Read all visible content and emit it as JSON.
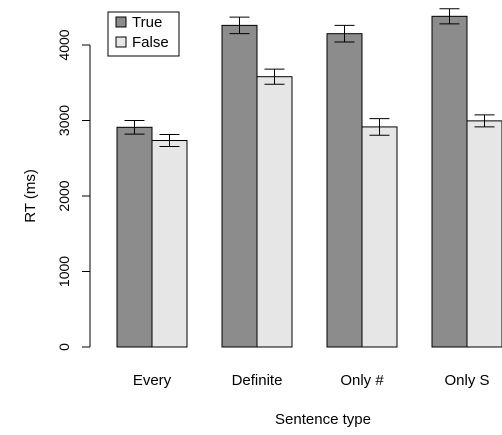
{
  "chart_data": {
    "type": "bar",
    "categories": [
      "Every",
      "Definite",
      "Only #",
      "Only S"
    ],
    "series": [
      {
        "name": "True",
        "color": "#8c8c8c",
        "values": [
          2910,
          4260,
          4150,
          4380
        ],
        "error": [
          90,
          110,
          110,
          100
        ]
      },
      {
        "name": "False",
        "color": "#e6e6e6",
        "values": [
          2735,
          3580,
          2915,
          2995
        ],
        "error": [
          80,
          100,
          110,
          80
        ]
      }
    ],
    "xlabel": "Sentence type",
    "ylabel": "RT (ms)",
    "ylim": [
      0,
      4500
    ],
    "yticks": [
      0,
      1000,
      2000,
      3000,
      4000
    ],
    "grid": false,
    "legend_position": "top-left"
  }
}
